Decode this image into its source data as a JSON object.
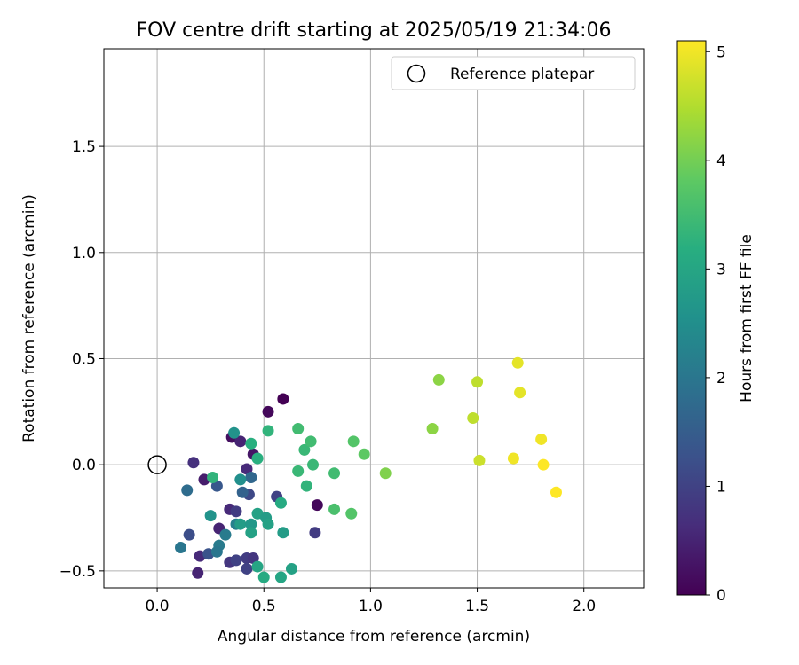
{
  "chart_data": {
    "type": "scatter",
    "title": "FOV centre drift starting at 2025/05/19 21:34:06",
    "xlabel": "Angular distance from reference (arcmin)",
    "ylabel": "Rotation from reference (arcmin)",
    "xlim": [
      -0.25,
      2.28
    ],
    "ylim": [
      -0.58,
      1.96
    ],
    "x_ticks": [
      0.0,
      0.5,
      1.0,
      1.5,
      2.0
    ],
    "x_tick_labels": [
      "0.0",
      "0.5",
      "1.0",
      "1.5",
      "2.0"
    ],
    "y_ticks": [
      -0.5,
      0.0,
      0.5,
      1.0,
      1.5
    ],
    "y_tick_labels": [
      "−0.5",
      "0.0",
      "0.5",
      "1.0",
      "1.5"
    ],
    "grid": true,
    "legend": {
      "placement": "top-right",
      "entries": [
        {
          "label": "Reference platepar",
          "marker": "open-circle",
          "color": "#000000"
        }
      ]
    },
    "reference_point": {
      "x": 0.0,
      "y": 0.0
    },
    "colorbar": {
      "label": "Hours from first FF file",
      "colormap": "viridis",
      "range": [
        0,
        5.1
      ],
      "ticks": [
        0,
        1,
        2,
        3,
        4,
        5
      ],
      "tick_labels": [
        "0",
        "1",
        "2",
        "3",
        "4",
        "5"
      ]
    },
    "points": [
      {
        "x": 0.59,
        "y": 0.31,
        "c": 0.0
      },
      {
        "x": 0.52,
        "y": 0.25,
        "c": 0.1
      },
      {
        "x": 0.35,
        "y": 0.13,
        "c": 0.2
      },
      {
        "x": 0.45,
        "y": 0.05,
        "c": 0.3
      },
      {
        "x": 0.75,
        "y": -0.19,
        "c": 0.1
      },
      {
        "x": 0.22,
        "y": -0.07,
        "c": 0.4
      },
      {
        "x": 0.39,
        "y": 0.11,
        "c": 0.5
      },
      {
        "x": 0.42,
        "y": -0.02,
        "c": 0.6
      },
      {
        "x": 0.29,
        "y": -0.3,
        "c": 0.5
      },
      {
        "x": 0.34,
        "y": -0.21,
        "c": 0.6
      },
      {
        "x": 0.19,
        "y": -0.51,
        "c": 0.5
      },
      {
        "x": 0.2,
        "y": -0.43,
        "c": 0.6
      },
      {
        "x": 0.17,
        "y": 0.01,
        "c": 0.7
      },
      {
        "x": 0.37,
        "y": -0.22,
        "c": 0.9
      },
      {
        "x": 0.34,
        "y": -0.46,
        "c": 0.8
      },
      {
        "x": 0.37,
        "y": -0.45,
        "c": 1.0
      },
      {
        "x": 0.42,
        "y": -0.44,
        "c": 0.9
      },
      {
        "x": 0.45,
        "y": -0.44,
        "c": 0.8
      },
      {
        "x": 0.42,
        "y": -0.49,
        "c": 1.0
      },
      {
        "x": 0.74,
        "y": -0.32,
        "c": 0.9
      },
      {
        "x": 0.56,
        "y": -0.15,
        "c": 1.0
      },
      {
        "x": 0.43,
        "y": -0.14,
        "c": 1.1
      },
      {
        "x": 0.15,
        "y": -0.33,
        "c": 1.2
      },
      {
        "x": 0.24,
        "y": -0.42,
        "c": 1.3
      },
      {
        "x": 0.28,
        "y": -0.1,
        "c": 1.4
      },
      {
        "x": 0.14,
        "y": -0.12,
        "c": 1.8
      },
      {
        "x": 0.11,
        "y": -0.39,
        "c": 2.0
      },
      {
        "x": 0.4,
        "y": -0.13,
        "c": 1.6
      },
      {
        "x": 0.44,
        "y": -0.06,
        "c": 1.7
      },
      {
        "x": 0.29,
        "y": -0.38,
        "c": 2.1
      },
      {
        "x": 0.28,
        "y": -0.41,
        "c": 2.0
      },
      {
        "x": 0.32,
        "y": -0.33,
        "c": 2.1
      },
      {
        "x": 0.37,
        "y": -0.28,
        "c": 2.2
      },
      {
        "x": 0.39,
        "y": -0.07,
        "c": 2.5
      },
      {
        "x": 0.36,
        "y": 0.15,
        "c": 2.6
      },
      {
        "x": 0.25,
        "y": -0.24,
        "c": 2.6
      },
      {
        "x": 0.39,
        "y": -0.28,
        "c": 2.8
      },
      {
        "x": 0.44,
        "y": -0.28,
        "c": 2.7
      },
      {
        "x": 0.44,
        "y": -0.32,
        "c": 2.9
      },
      {
        "x": 0.47,
        "y": -0.23,
        "c": 2.9
      },
      {
        "x": 0.51,
        "y": -0.25,
        "c": 2.8
      },
      {
        "x": 0.52,
        "y": -0.28,
        "c": 2.9
      },
      {
        "x": 0.47,
        "y": -0.48,
        "c": 3.0
      },
      {
        "x": 0.5,
        "y": -0.53,
        "c": 3.1
      },
      {
        "x": 0.58,
        "y": -0.53,
        "c": 3.0
      },
      {
        "x": 0.63,
        "y": -0.49,
        "c": 2.9
      },
      {
        "x": 0.59,
        "y": -0.32,
        "c": 2.8
      },
      {
        "x": 0.58,
        "y": -0.18,
        "c": 3.1
      },
      {
        "x": 0.44,
        "y": 0.1,
        "c": 3.2
      },
      {
        "x": 0.47,
        "y": 0.03,
        "c": 3.2
      },
      {
        "x": 0.52,
        "y": 0.16,
        "c": 3.3
      },
      {
        "x": 0.26,
        "y": -0.06,
        "c": 3.3
      },
      {
        "x": 0.7,
        "y": -0.1,
        "c": 3.3
      },
      {
        "x": 0.66,
        "y": -0.03,
        "c": 3.4
      },
      {
        "x": 0.69,
        "y": 0.07,
        "c": 3.4
      },
      {
        "x": 0.72,
        "y": 0.11,
        "c": 3.5
      },
      {
        "x": 0.73,
        "y": 0.0,
        "c": 3.4
      },
      {
        "x": 0.66,
        "y": 0.17,
        "c": 3.5
      },
      {
        "x": 0.83,
        "y": -0.04,
        "c": 3.5
      },
      {
        "x": 0.83,
        "y": -0.21,
        "c": 3.6
      },
      {
        "x": 0.91,
        "y": -0.23,
        "c": 3.7
      },
      {
        "x": 0.92,
        "y": 0.11,
        "c": 3.7
      },
      {
        "x": 0.97,
        "y": 0.05,
        "c": 3.8
      },
      {
        "x": 1.07,
        "y": -0.04,
        "c": 4.1
      },
      {
        "x": 1.29,
        "y": 0.17,
        "c": 4.2
      },
      {
        "x": 1.32,
        "y": 0.4,
        "c": 4.2
      },
      {
        "x": 1.48,
        "y": 0.22,
        "c": 4.6
      },
      {
        "x": 1.5,
        "y": 0.39,
        "c": 4.6
      },
      {
        "x": 1.51,
        "y": 0.02,
        "c": 4.7
      },
      {
        "x": 1.69,
        "y": 0.48,
        "c": 4.9
      },
      {
        "x": 1.7,
        "y": 0.34,
        "c": 4.9
      },
      {
        "x": 1.67,
        "y": 0.03,
        "c": 5.0
      },
      {
        "x": 1.8,
        "y": 0.12,
        "c": 5.0
      },
      {
        "x": 1.81,
        "y": 0.0,
        "c": 5.1
      },
      {
        "x": 1.87,
        "y": -0.13,
        "c": 5.1
      }
    ]
  }
}
